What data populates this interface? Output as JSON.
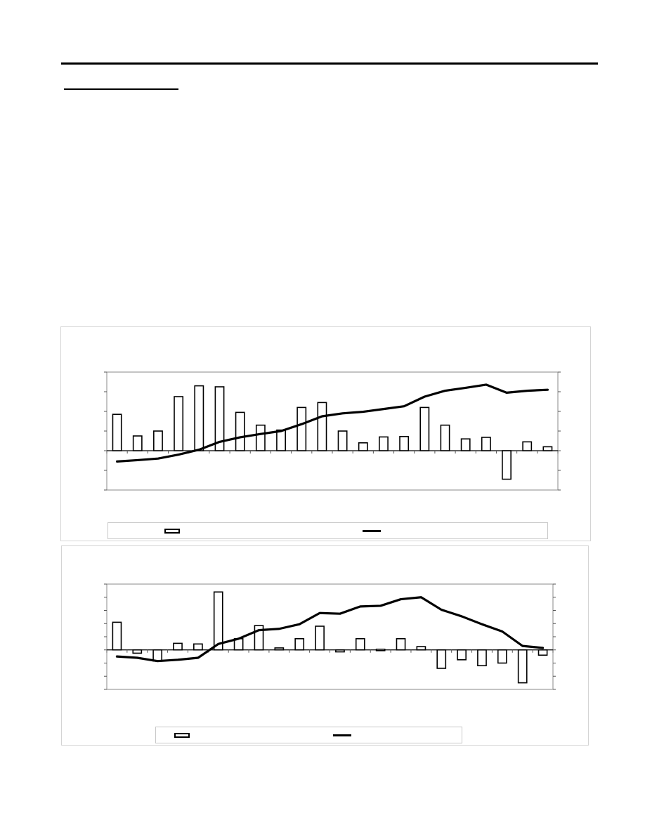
{
  "chart_data": [
    {
      "type": "bar",
      "title": "",
      "xlabel": "",
      "ylabel": "",
      "grid": false,
      "legend_position": "bottom",
      "series": [
        {
          "kind": "bar",
          "name": "",
          "values": [
            1.85,
            0.75,
            1.0,
            2.75,
            3.3,
            3.25,
            1.95,
            1.3,
            1.05,
            2.2,
            2.45,
            1.0,
            0.4,
            0.7,
            0.72,
            2.2,
            1.3,
            0.6,
            0.68,
            -1.45,
            0.45,
            0.2
          ]
        },
        {
          "kind": "line",
          "name": "",
          "values": [
            -0.55,
            -0.48,
            -0.4,
            -0.2,
            0.05,
            0.45,
            0.68,
            0.85,
            1.0,
            1.35,
            1.75,
            1.9,
            1.98,
            2.12,
            2.26,
            2.75,
            3.05,
            3.2,
            3.36,
            2.95,
            3.05,
            3.1
          ]
        }
      ],
      "ylim": [
        -2,
        4
      ]
    },
    {
      "type": "bar",
      "title": "",
      "xlabel": "",
      "ylabel": "",
      "grid": false,
      "legend_position": "bottom",
      "series": [
        {
          "kind": "bar",
          "name": "",
          "values": [
            2.1,
            -0.25,
            -0.85,
            0.5,
            0.45,
            4.4,
            0.85,
            1.85,
            0.15,
            0.85,
            1.8,
            -0.15,
            0.85,
            0.05,
            0.85,
            0.25,
            -1.4,
            -0.75,
            -1.2,
            -1.0,
            -2.5,
            -0.4
          ]
        },
        {
          "kind": "line",
          "name": "",
          "values": [
            -0.5,
            -0.6,
            -0.85,
            -0.75,
            -0.6,
            0.45,
            0.85,
            1.5,
            1.6,
            1.95,
            2.8,
            2.75,
            3.3,
            3.35,
            3.85,
            4.0,
            3.05,
            2.55,
            1.95,
            1.4,
            0.3,
            0.15
          ]
        }
      ],
      "ylim": [
        -3,
        5
      ]
    }
  ]
}
